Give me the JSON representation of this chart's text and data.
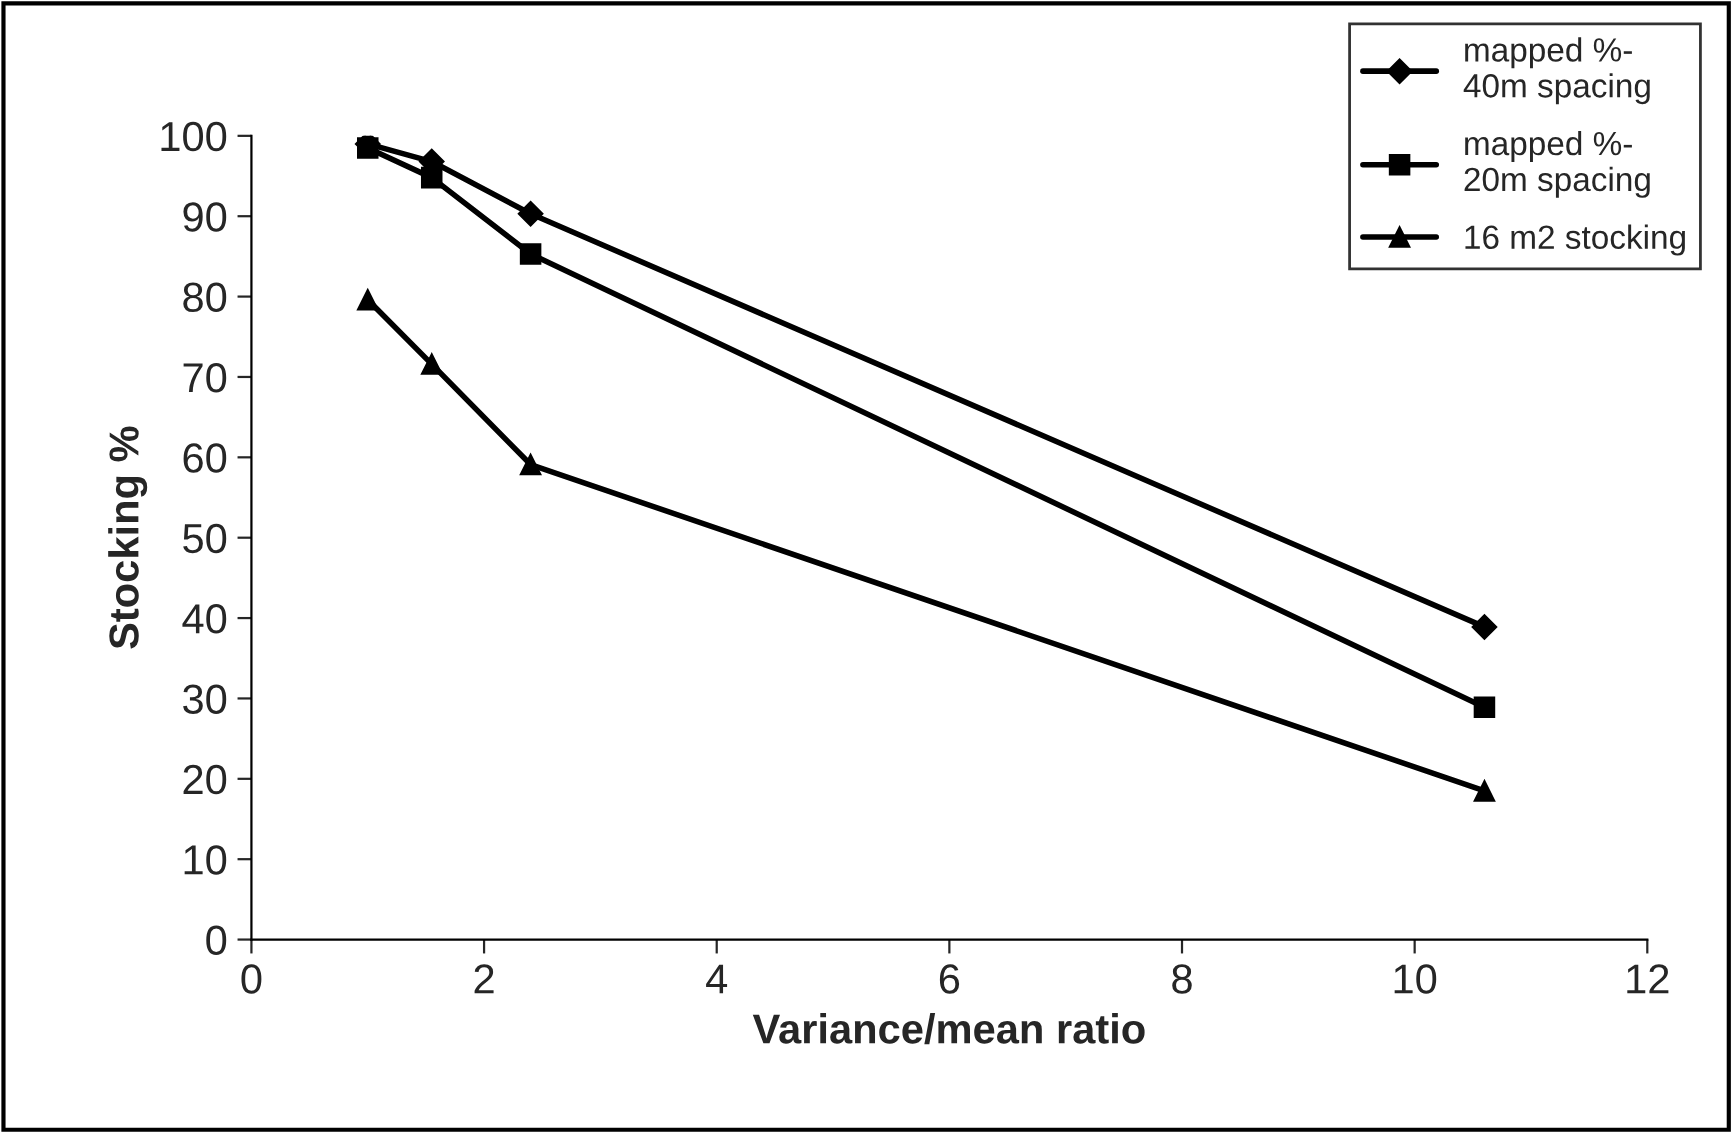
{
  "chart_data": {
    "type": "line",
    "xlabel": "Variance/mean ratio",
    "ylabel": "Stocking %",
    "xlim": [
      0,
      12
    ],
    "xticks": [
      0,
      2,
      4,
      6,
      8,
      10,
      12
    ],
    "ylim": [
      0,
      100
    ],
    "yticks": [
      0,
      10,
      20,
      30,
      40,
      50,
      60,
      70,
      80,
      90,
      100
    ],
    "x": [
      1.0,
      1.55,
      2.4,
      10.6
    ],
    "series": [
      {
        "name": "mapped %-\n40m spacing",
        "color": "#000000",
        "marker": "diamond",
        "values": [
          99,
          96.8,
          90.3,
          38.9
        ]
      },
      {
        "name": "mapped %-\n20m spacing",
        "color": "#000000",
        "marker": "square",
        "values": [
          98.5,
          94.8,
          85.3,
          28.9
        ]
      },
      {
        "name": "16 m2 stocking",
        "color": "#000000",
        "marker": "triangle",
        "values": [
          79.6,
          71.6,
          59.1,
          18.5
        ]
      }
    ],
    "line_style": "solid",
    "grid": false,
    "legend": "top right"
  }
}
